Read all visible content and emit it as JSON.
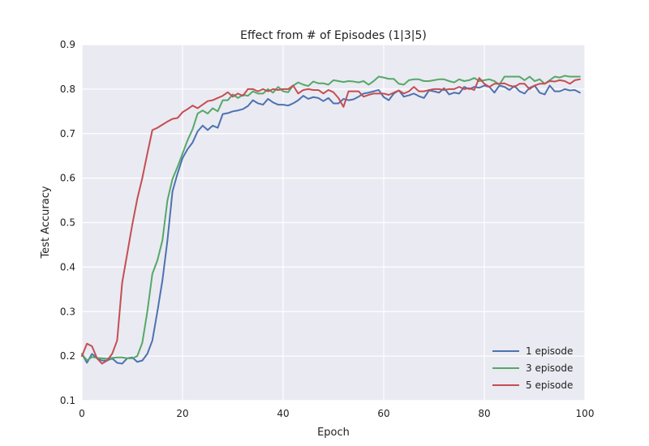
{
  "chart_data": {
    "type": "line",
    "title": "Effect from # of Episodes (1|3|5)",
    "xlabel": "Epoch",
    "ylabel": "Test Accuracy",
    "xlim": [
      0,
      100
    ],
    "ylim": [
      0.1,
      0.9
    ],
    "xticks": [
      0,
      20,
      40,
      60,
      80,
      100
    ],
    "yticks": [
      0.1,
      0.2,
      0.3,
      0.4,
      0.5,
      0.6,
      0.7,
      0.8,
      0.9
    ],
    "xtick_labels": [
      "0",
      "20",
      "40",
      "60",
      "80",
      "100"
    ],
    "ytick_labels": [
      "0.1",
      "0.2",
      "0.3",
      "0.4",
      "0.5",
      "0.6",
      "0.7",
      "0.8",
      "0.9"
    ],
    "grid": true,
    "legend_position": "lower-right",
    "x": [
      0,
      1,
      2,
      3,
      4,
      5,
      6,
      7,
      8,
      9,
      10,
      11,
      12,
      13,
      14,
      15,
      16,
      17,
      18,
      19,
      20,
      21,
      22,
      23,
      24,
      25,
      26,
      27,
      28,
      29,
      30,
      31,
      32,
      33,
      34,
      35,
      36,
      37,
      38,
      39,
      40,
      41,
      42,
      43,
      44,
      45,
      46,
      47,
      48,
      49,
      50,
      51,
      52,
      53,
      54,
      55,
      56,
      57,
      58,
      59,
      60,
      61,
      62,
      63,
      64,
      65,
      66,
      67,
      68,
      69,
      70,
      71,
      72,
      73,
      74,
      75,
      76,
      77,
      78,
      79,
      80,
      81,
      82,
      83,
      84,
      85,
      86,
      87,
      88,
      89,
      90,
      91,
      92,
      93,
      94,
      95,
      96,
      97,
      98,
      99
    ],
    "series": [
      {
        "name": "1 episode",
        "color": "#4c72b0",
        "values": [
          0.205,
          0.185,
          0.205,
          0.195,
          0.19,
          0.19,
          0.195,
          0.185,
          0.183,
          0.195,
          0.197,
          0.187,
          0.19,
          0.205,
          0.235,
          0.3,
          0.37,
          0.46,
          0.57,
          0.61,
          0.645,
          0.665,
          0.68,
          0.705,
          0.718,
          0.708,
          0.718,
          0.713,
          0.744,
          0.746,
          0.75,
          0.752,
          0.755,
          0.762,
          0.775,
          0.768,
          0.765,
          0.778,
          0.77,
          0.765,
          0.765,
          0.763,
          0.768,
          0.775,
          0.785,
          0.778,
          0.782,
          0.78,
          0.773,
          0.78,
          0.768,
          0.768,
          0.778,
          0.775,
          0.777,
          0.783,
          0.79,
          0.792,
          0.795,
          0.798,
          0.782,
          0.775,
          0.79,
          0.797,
          0.783,
          0.786,
          0.79,
          0.784,
          0.78,
          0.797,
          0.795,
          0.792,
          0.802,
          0.788,
          0.792,
          0.79,
          0.805,
          0.8,
          0.805,
          0.803,
          0.808,
          0.805,
          0.792,
          0.808,
          0.805,
          0.798,
          0.807,
          0.795,
          0.79,
          0.803,
          0.808,
          0.792,
          0.788,
          0.808,
          0.795,
          0.795,
          0.8,
          0.797,
          0.798,
          0.792
        ]
      },
      {
        "name": "3 episode",
        "color": "#55a868",
        "values": [
          0.205,
          0.19,
          0.198,
          0.196,
          0.195,
          0.194,
          0.196,
          0.197,
          0.197,
          0.195,
          0.195,
          0.2,
          0.23,
          0.3,
          0.385,
          0.415,
          0.46,
          0.55,
          0.598,
          0.625,
          0.655,
          0.685,
          0.71,
          0.745,
          0.752,
          0.745,
          0.757,
          0.75,
          0.775,
          0.775,
          0.788,
          0.78,
          0.787,
          0.785,
          0.795,
          0.79,
          0.79,
          0.8,
          0.792,
          0.805,
          0.795,
          0.793,
          0.808,
          0.815,
          0.81,
          0.807,
          0.817,
          0.813,
          0.813,
          0.81,
          0.82,
          0.818,
          0.816,
          0.818,
          0.817,
          0.815,
          0.818,
          0.81,
          0.818,
          0.828,
          0.826,
          0.823,
          0.823,
          0.812,
          0.81,
          0.82,
          0.822,
          0.822,
          0.818,
          0.818,
          0.82,
          0.822,
          0.822,
          0.818,
          0.815,
          0.822,
          0.818,
          0.82,
          0.825,
          0.818,
          0.82,
          0.822,
          0.818,
          0.81,
          0.828,
          0.828,
          0.828,
          0.828,
          0.82,
          0.828,
          0.818,
          0.822,
          0.812,
          0.82,
          0.828,
          0.826,
          0.83,
          0.828,
          0.828,
          0.828
        ]
      },
      {
        "name": "5 episode",
        "color": "#c44e52",
        "values": [
          0.2,
          0.228,
          0.222,
          0.195,
          0.183,
          0.19,
          0.205,
          0.235,
          0.365,
          0.43,
          0.495,
          0.553,
          0.6,
          0.655,
          0.708,
          0.713,
          0.72,
          0.727,
          0.733,
          0.735,
          0.748,
          0.755,
          0.763,
          0.757,
          0.765,
          0.773,
          0.775,
          0.78,
          0.785,
          0.793,
          0.783,
          0.79,
          0.785,
          0.8,
          0.8,
          0.795,
          0.8,
          0.795,
          0.8,
          0.798,
          0.8,
          0.8,
          0.808,
          0.79,
          0.798,
          0.8,
          0.798,
          0.798,
          0.79,
          0.798,
          0.793,
          0.78,
          0.76,
          0.795,
          0.795,
          0.795,
          0.783,
          0.787,
          0.79,
          0.79,
          0.79,
          0.787,
          0.792,
          0.797,
          0.79,
          0.795,
          0.805,
          0.795,
          0.795,
          0.798,
          0.8,
          0.8,
          0.798,
          0.8,
          0.8,
          0.805,
          0.8,
          0.802,
          0.798,
          0.825,
          0.812,
          0.805,
          0.812,
          0.812,
          0.813,
          0.808,
          0.805,
          0.812,
          0.812,
          0.8,
          0.808,
          0.812,
          0.812,
          0.818,
          0.817,
          0.82,
          0.818,
          0.812,
          0.82,
          0.822
        ]
      }
    ]
  }
}
